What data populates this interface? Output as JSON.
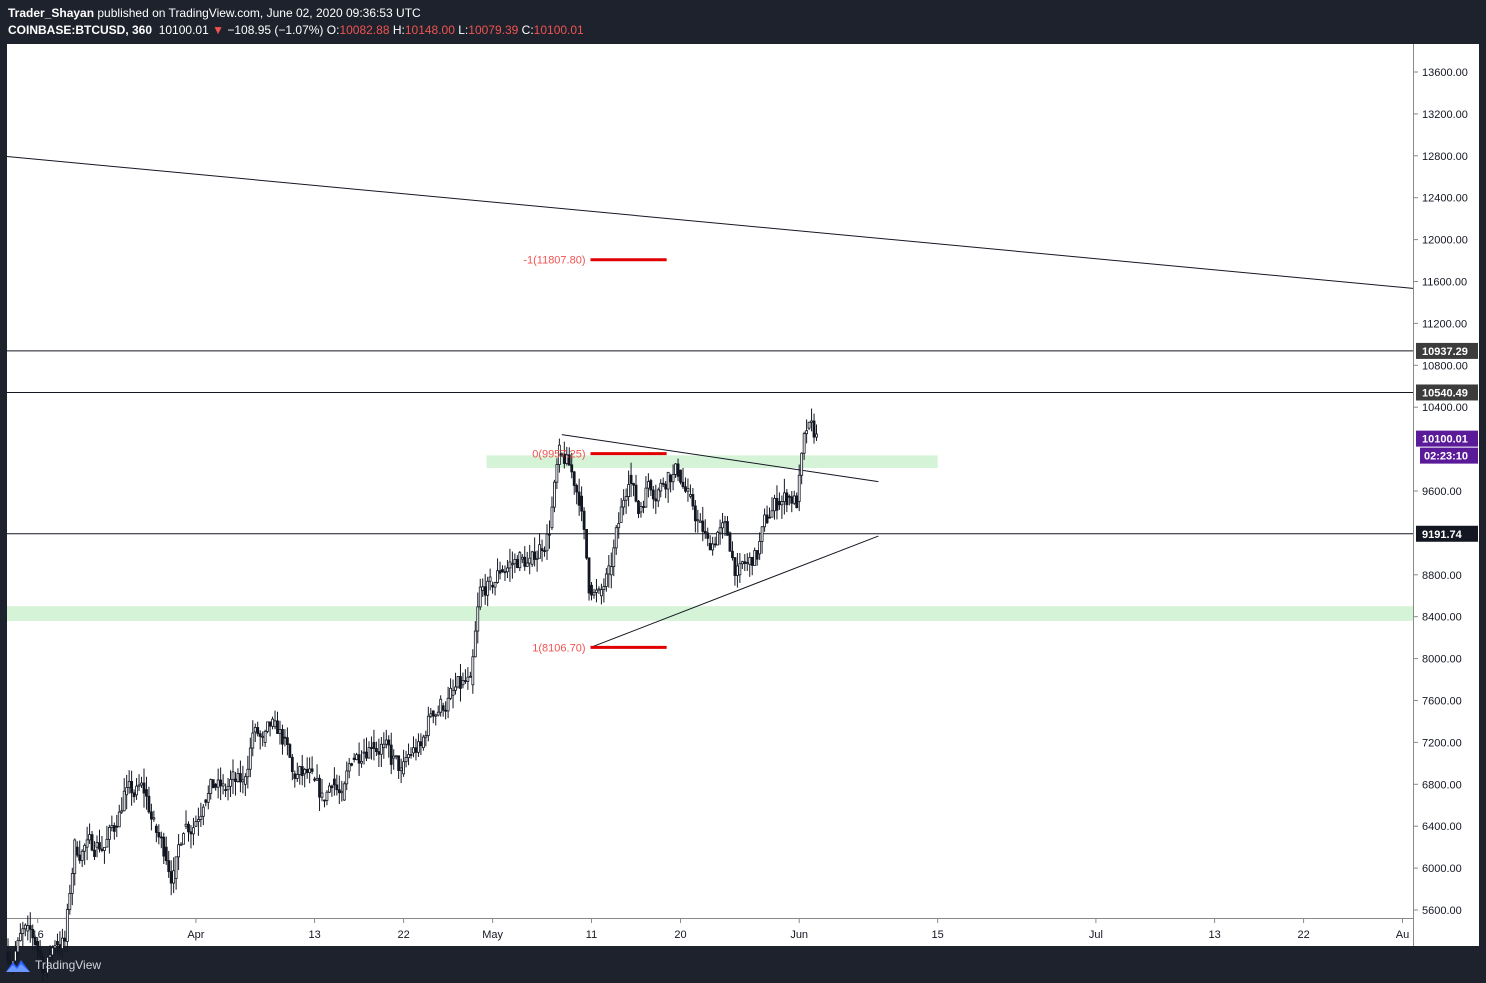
{
  "header": {
    "author": "Trader_Shayan",
    "published": " published on TradingView.com, June 02, 2020 09:36:53 UTC",
    "symbol": "COINBASE:BTCUSD, 360",
    "last": "10100.01",
    "change_arrow": "▼",
    "change": "−108.95 (−1.07%)",
    "o_label": "O:",
    "o_value": "10082.88",
    "h_label": "H:",
    "h_value": "10148.00",
    "l_label": "L:",
    "l_value": "10079.39",
    "c_label": "C:",
    "c_value": "10100.01"
  },
  "footer": {
    "brand": "TradingView",
    "logo_icon": "tradingview-logo-icon"
  },
  "colors": {
    "background": "#1e222d",
    "pane": "#ffffff",
    "candle": "#131722",
    "fib": "#e00000",
    "fib_text": "#ef5350",
    "zone": "#d5f3d7",
    "price_tag": "#5b1b99",
    "level_tag": "#3c3c3c"
  },
  "chart_data": {
    "type": "candlestick",
    "title": "COINBASE:BTCUSD, 360",
    "xlabel": "",
    "ylabel": "",
    "ylim": [
      5600,
      13600
    ],
    "y_ticks": [
      "13600.00",
      "13200.00",
      "12800.00",
      "12400.00",
      "12000.00",
      "11600.00",
      "11200.00",
      "10800.00",
      "10400.00",
      "9600.00",
      "8800.00",
      "8400.00",
      "8000.00",
      "7600.00",
      "7200.00",
      "6800.00",
      "6400.00",
      "6000.00",
      "5600.00"
    ],
    "x_ticks": [
      "16",
      "Apr",
      "13",
      "22",
      "May",
      "11",
      "20",
      "Jun",
      "15",
      "Jul",
      "13",
      "22",
      "Au"
    ],
    "x_tick_dates": [
      "2020-03-16",
      "2020-04-01",
      "2020-04-13",
      "2020-04-22",
      "2020-05-01",
      "2020-05-11",
      "2020-05-20",
      "2020-06-01",
      "2020-06-15",
      "2020-07-01",
      "2020-07-13",
      "2020-07-22",
      "2020-08-01"
    ],
    "price_series": {
      "name": "BTCUSD",
      "date": [
        "2020-03-13",
        "2020-03-14",
        "2020-03-15",
        "2020-03-16",
        "2020-03-17",
        "2020-03-18",
        "2020-03-19",
        "2020-03-20",
        "2020-03-21",
        "2020-03-22",
        "2020-03-23",
        "2020-03-24",
        "2020-03-25",
        "2020-03-26",
        "2020-03-27",
        "2020-03-28",
        "2020-03-29",
        "2020-03-30",
        "2020-03-31",
        "2020-04-01",
        "2020-04-02",
        "2020-04-03",
        "2020-04-04",
        "2020-04-05",
        "2020-04-06",
        "2020-04-07",
        "2020-04-08",
        "2020-04-09",
        "2020-04-10",
        "2020-04-11",
        "2020-04-12",
        "2020-04-13",
        "2020-04-14",
        "2020-04-15",
        "2020-04-16",
        "2020-04-17",
        "2020-04-18",
        "2020-04-19",
        "2020-04-20",
        "2020-04-21",
        "2020-04-22",
        "2020-04-23",
        "2020-04-24",
        "2020-04-25",
        "2020-04-26",
        "2020-04-27",
        "2020-04-28",
        "2020-04-29",
        "2020-04-30",
        "2020-05-01",
        "2020-05-02",
        "2020-05-03",
        "2020-05-04",
        "2020-05-05",
        "2020-05-06",
        "2020-05-07",
        "2020-05-08",
        "2020-05-09",
        "2020-05-10",
        "2020-05-11",
        "2020-05-12",
        "2020-05-13",
        "2020-05-14",
        "2020-05-15",
        "2020-05-16",
        "2020-05-17",
        "2020-05-18",
        "2020-05-19",
        "2020-05-20",
        "2020-05-21",
        "2020-05-22",
        "2020-05-23",
        "2020-05-24",
        "2020-05-25",
        "2020-05-26",
        "2020-05-27",
        "2020-05-28",
        "2020-05-29",
        "2020-05-30",
        "2020-05-31",
        "2020-06-01",
        "2020-06-02"
      ],
      "close": [
        5200,
        5400,
        5300,
        5000,
        5300,
        5300,
        6200,
        6200,
        6200,
        6200,
        6400,
        6700,
        6700,
        6750,
        6400,
        6200,
        5900,
        6400,
        6400,
        6650,
        6800,
        6750,
        6850,
        6800,
        7300,
        7200,
        7350,
        7250,
        6900,
        6900,
        6850,
        6650,
        6850,
        6650,
        7050,
        7100,
        7200,
        7150,
        7050,
        6900,
        7100,
        7150,
        7500,
        7550,
        7650,
        7750,
        7750,
        8650,
        8700,
        8850,
        8900,
        8950,
        8900,
        9050,
        9250,
        9950,
        9850,
        9550,
        8700,
        8600,
        8800,
        9300,
        9750,
        9400,
        9700,
        9600,
        9750,
        9800,
        9550,
        9300,
        9100,
        9200,
        9200,
        8800,
        8900,
        9000,
        9350,
        9500,
        9550,
        9500,
        10200,
        10100
      ]
    },
    "overlays": {
      "descending_trendline": {
        "points": [
          [
            "2020-03-13",
            12793
          ],
          [
            "2020-06-09",
            12013
          ]
        ]
      },
      "triangle_upper": {
        "points": [
          [
            "2020-05-08",
            10138
          ],
          [
            "2020-05-17",
            9860
          ]
        ],
        "extended_to": [
          "2020-06-09",
          9690
        ]
      },
      "triangle_lower": {
        "points": [
          [
            "2020-05-11",
            8110
          ],
          [
            "2020-06-09",
            9170
          ]
        ]
      },
      "horizontal_levels": [
        10937.29,
        10540.49,
        9191.74
      ],
      "level_labels": [
        "10937.29",
        "10540.49",
        "9191.74"
      ],
      "support_zones": [
        [
          8360,
          8500
        ],
        [
          9820,
          9940
        ]
      ],
      "fib_levels": [
        {
          "label": "-1(11807.80)",
          "value": 11807.8
        },
        {
          "label": "0(9957.25)",
          "value": 9957.25
        },
        {
          "label": "1(8106.70)",
          "value": 8106.7
        }
      ],
      "last_price_label": "10100.01",
      "countdown_label": "02:23:10"
    }
  }
}
